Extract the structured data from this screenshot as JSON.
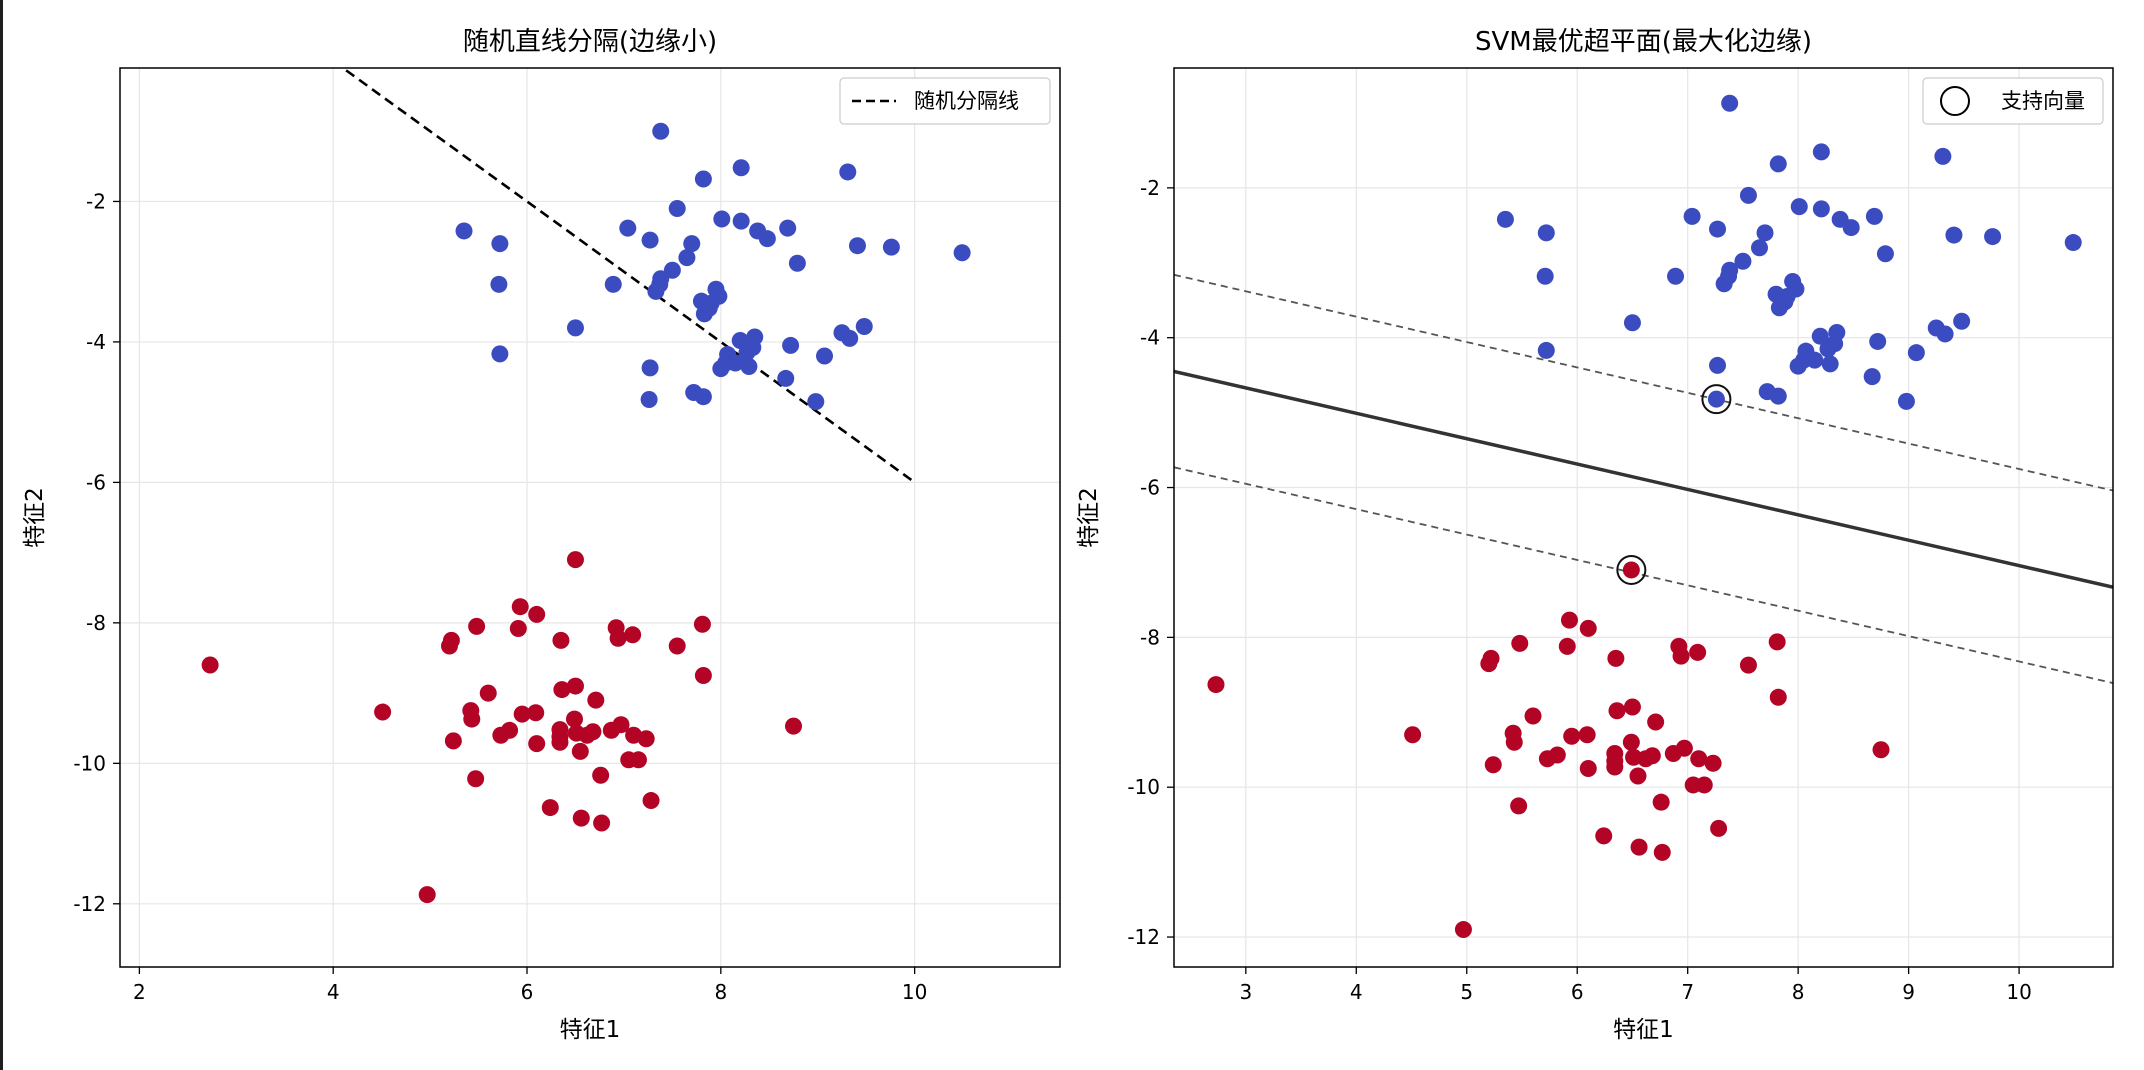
{
  "chart_data": [
    {
      "type": "scatter",
      "title": "随机直线分隔(边缘小)",
      "xlabel": "特征1",
      "ylabel": "特征2",
      "xlim": [
        1.8,
        11.5
      ],
      "ylim": [
        -12.9,
        -0.1
      ],
      "xticks": [
        2,
        4,
        6,
        8,
        10
      ],
      "yticks": [
        -2,
        -4,
        -6,
        -8,
        -10,
        -12
      ],
      "grid": true,
      "legend": {
        "position": "top-right",
        "entries": [
          {
            "label": "随机分隔线",
            "style": "dashed-line"
          }
        ]
      },
      "lines": [
        {
          "name": "随机分隔线",
          "style": "dashed",
          "color": "#000000",
          "x": [
            4.0,
            10.0
          ],
          "y": [
            0.0,
            -6.0
          ]
        }
      ],
      "series": [
        {
          "name": "class_0",
          "color": "#3B4CC0",
          "points": [
            [
              7.38,
              -1.0
            ],
            [
              8.21,
              -1.52
            ],
            [
              9.31,
              -1.58
            ],
            [
              7.82,
              -1.68
            ],
            [
              7.55,
              -2.1
            ],
            [
              8.01,
              -2.25
            ],
            [
              8.21,
              -2.28
            ],
            [
              5.35,
              -2.42
            ],
            [
              7.04,
              -2.38
            ],
            [
              8.69,
              -2.38
            ],
            [
              8.38,
              -2.42
            ],
            [
              8.48,
              -2.53
            ],
            [
              7.27,
              -2.55
            ],
            [
              7.7,
              -2.6
            ],
            [
              5.72,
              -2.6
            ],
            [
              9.41,
              -2.63
            ],
            [
              9.76,
              -2.65
            ],
            [
              10.49,
              -2.73
            ],
            [
              7.65,
              -2.8
            ],
            [
              8.79,
              -2.88
            ],
            [
              7.5,
              -2.98
            ],
            [
              7.38,
              -3.1
            ],
            [
              6.89,
              -3.18
            ],
            [
              5.71,
              -3.18
            ],
            [
              7.37,
              -3.18
            ],
            [
              7.95,
              -3.25
            ],
            [
              7.33,
              -3.28
            ],
            [
              7.98,
              -3.35
            ],
            [
              7.8,
              -3.42
            ],
            [
              7.9,
              -3.45
            ],
            [
              7.88,
              -3.52
            ],
            [
              7.83,
              -3.6
            ],
            [
              6.5,
              -3.8
            ],
            [
              9.48,
              -3.78
            ],
            [
              9.25,
              -3.87
            ],
            [
              9.33,
              -3.95
            ],
            [
              8.35,
              -3.93
            ],
            [
              8.2,
              -3.98
            ],
            [
              8.33,
              -4.08
            ],
            [
              8.72,
              -4.05
            ],
            [
              8.27,
              -4.15
            ],
            [
              8.07,
              -4.18
            ],
            [
              9.07,
              -4.2
            ],
            [
              5.72,
              -4.17
            ],
            [
              8.15,
              -4.3
            ],
            [
              8.05,
              -4.3
            ],
            [
              7.27,
              -4.37
            ],
            [
              8.0,
              -4.38
            ],
            [
              8.29,
              -4.35
            ],
            [
              8.67,
              -4.52
            ],
            [
              7.72,
              -4.72
            ],
            [
              7.82,
              -4.78
            ],
            [
              8.98,
              -4.85
            ],
            [
              7.26,
              -4.82
            ]
          ]
        },
        {
          "name": "class_1",
          "color": "#B40426",
          "points": [
            [
              6.5,
              -7.1
            ],
            [
              5.93,
              -7.77
            ],
            [
              6.1,
              -7.88
            ],
            [
              7.81,
              -8.02
            ],
            [
              5.48,
              -8.05
            ],
            [
              5.91,
              -8.08
            ],
            [
              6.92,
              -8.07
            ],
            [
              7.09,
              -8.17
            ],
            [
              6.94,
              -8.22
            ],
            [
              6.35,
              -8.25
            ],
            [
              5.22,
              -8.25
            ],
            [
              5.2,
              -8.33
            ],
            [
              7.55,
              -8.33
            ],
            [
              2.73,
              -8.6
            ],
            [
              7.82,
              -8.75
            ],
            [
              6.5,
              -8.9
            ],
            [
              6.36,
              -8.95
            ],
            [
              5.6,
              -9.0
            ],
            [
              6.71,
              -9.1
            ],
            [
              4.51,
              -9.27
            ],
            [
              5.42,
              -9.25
            ],
            [
              6.09,
              -9.28
            ],
            [
              5.95,
              -9.3
            ],
            [
              5.43,
              -9.37
            ],
            [
              6.49,
              -9.37
            ],
            [
              6.97,
              -9.45
            ],
            [
              6.87,
              -9.53
            ],
            [
              8.75,
              -9.47
            ],
            [
              6.34,
              -9.52
            ],
            [
              5.82,
              -9.53
            ],
            [
              6.68,
              -9.55
            ],
            [
              6.51,
              -9.57
            ],
            [
              5.73,
              -9.6
            ],
            [
              6.62,
              -9.6
            ],
            [
              7.1,
              -9.6
            ],
            [
              6.34,
              -9.62
            ],
            [
              7.23,
              -9.65
            ],
            [
              5.24,
              -9.68
            ],
            [
              6.34,
              -9.7
            ],
            [
              6.1,
              -9.72
            ],
            [
              6.55,
              -9.83
            ],
            [
              7.05,
              -9.95
            ],
            [
              7.15,
              -9.95
            ],
            [
              5.47,
              -10.22
            ],
            [
              6.76,
              -10.17
            ],
            [
              7.28,
              -10.53
            ],
            [
              6.24,
              -10.63
            ],
            [
              6.56,
              -10.78
            ],
            [
              6.77,
              -10.85
            ],
            [
              4.97,
              -11.87
            ]
          ]
        }
      ]
    },
    {
      "type": "scatter",
      "title": "SVM最优超平面(最大化边缘)",
      "xlabel": "特征1",
      "ylabel": "特征2",
      "xlim": [
        2.35,
        10.85
      ],
      "ylim": [
        -12.4,
        -0.4
      ],
      "xticks": [
        3,
        4,
        5,
        6,
        7,
        8,
        9,
        10
      ],
      "yticks": [
        -2,
        -4,
        -6,
        -8,
        -10,
        -12
      ],
      "grid": true,
      "legend": {
        "position": "top-right",
        "entries": [
          {
            "label": "支持向量",
            "style": "open-circle"
          }
        ]
      },
      "lines": [
        {
          "name": "decision_boundary",
          "style": "solid",
          "color": "#333333",
          "x": [
            2.35,
            10.85
          ],
          "y": [
            -4.45,
            -7.33
          ]
        },
        {
          "name": "margin_upper",
          "style": "dashed",
          "color": "#555555",
          "x": [
            2.35,
            10.85
          ],
          "y": [
            -3.16,
            -6.04
          ]
        },
        {
          "name": "margin_lower",
          "style": "dashed",
          "color": "#555555",
          "x": [
            2.35,
            10.85
          ],
          "y": [
            -5.73,
            -8.61
          ]
        }
      ],
      "support_vectors": [
        [
          7.26,
          -4.82
        ],
        [
          6.49,
          -7.1
        ]
      ],
      "series": [
        {
          "name": "class_0",
          "color": "#3B4CC0",
          "points": [
            [
              7.38,
              -0.87
            ],
            [
              8.21,
              -1.52
            ],
            [
              9.31,
              -1.58
            ],
            [
              7.82,
              -1.68
            ],
            [
              7.55,
              -2.1
            ],
            [
              8.01,
              -2.25
            ],
            [
              8.21,
              -2.28
            ],
            [
              5.35,
              -2.42
            ],
            [
              7.04,
              -2.38
            ],
            [
              8.69,
              -2.38
            ],
            [
              8.38,
              -2.42
            ],
            [
              8.48,
              -2.53
            ],
            [
              7.27,
              -2.55
            ],
            [
              7.7,
              -2.6
            ],
            [
              5.72,
              -2.6
            ],
            [
              9.41,
              -2.63
            ],
            [
              9.76,
              -2.65
            ],
            [
              10.49,
              -2.73
            ],
            [
              7.65,
              -2.8
            ],
            [
              8.79,
              -2.88
            ],
            [
              7.5,
              -2.98
            ],
            [
              7.38,
              -3.1
            ],
            [
              6.89,
              -3.18
            ],
            [
              5.71,
              -3.18
            ],
            [
              7.37,
              -3.18
            ],
            [
              7.95,
              -3.25
            ],
            [
              7.33,
              -3.28
            ],
            [
              7.98,
              -3.35
            ],
            [
              7.8,
              -3.42
            ],
            [
              7.9,
              -3.45
            ],
            [
              7.88,
              -3.52
            ],
            [
              7.83,
              -3.6
            ],
            [
              6.5,
              -3.8
            ],
            [
              9.48,
              -3.78
            ],
            [
              9.25,
              -3.87
            ],
            [
              9.33,
              -3.95
            ],
            [
              8.35,
              -3.93
            ],
            [
              8.2,
              -3.98
            ],
            [
              8.33,
              -4.08
            ],
            [
              8.72,
              -4.05
            ],
            [
              8.27,
              -4.15
            ],
            [
              8.07,
              -4.18
            ],
            [
              9.07,
              -4.2
            ],
            [
              5.72,
              -4.17
            ],
            [
              8.15,
              -4.3
            ],
            [
              8.05,
              -4.3
            ],
            [
              7.27,
              -4.37
            ],
            [
              8.0,
              -4.38
            ],
            [
              8.29,
              -4.35
            ],
            [
              8.67,
              -4.52
            ],
            [
              7.72,
              -4.72
            ],
            [
              7.82,
              -4.78
            ],
            [
              8.98,
              -4.85
            ],
            [
              7.26,
              -4.82
            ]
          ]
        },
        {
          "name": "class_1",
          "color": "#B40426",
          "points": [
            [
              6.49,
              -7.1
            ],
            [
              5.93,
              -7.77
            ],
            [
              6.1,
              -7.88
            ],
            [
              7.81,
              -8.06
            ],
            [
              5.48,
              -8.08
            ],
            [
              5.91,
              -8.12
            ],
            [
              6.92,
              -8.12
            ],
            [
              7.09,
              -8.2
            ],
            [
              6.94,
              -8.25
            ],
            [
              6.35,
              -8.28
            ],
            [
              5.22,
              -8.28
            ],
            [
              5.2,
              -8.35
            ],
            [
              7.55,
              -8.37
            ],
            [
              2.73,
              -8.63
            ],
            [
              7.82,
              -8.8
            ],
            [
              6.5,
              -8.93
            ],
            [
              6.36,
              -8.98
            ],
            [
              5.6,
              -9.05
            ],
            [
              6.71,
              -9.13
            ],
            [
              4.51,
              -9.3
            ],
            [
              5.42,
              -9.28
            ],
            [
              6.09,
              -9.3
            ],
            [
              5.95,
              -9.32
            ],
            [
              5.43,
              -9.4
            ],
            [
              6.49,
              -9.4
            ],
            [
              6.97,
              -9.48
            ],
            [
              6.87,
              -9.55
            ],
            [
              8.75,
              -9.5
            ],
            [
              6.34,
              -9.55
            ],
            [
              5.82,
              -9.57
            ],
            [
              6.68,
              -9.58
            ],
            [
              6.51,
              -9.6
            ],
            [
              5.73,
              -9.62
            ],
            [
              6.62,
              -9.62
            ],
            [
              7.1,
              -9.62
            ],
            [
              6.34,
              -9.65
            ],
            [
              7.23,
              -9.68
            ],
            [
              5.24,
              -9.7
            ],
            [
              6.34,
              -9.73
            ],
            [
              6.1,
              -9.75
            ],
            [
              6.55,
              -9.85
            ],
            [
              7.05,
              -9.97
            ],
            [
              7.15,
              -9.97
            ],
            [
              5.47,
              -10.25
            ],
            [
              6.76,
              -10.2
            ],
            [
              7.28,
              -10.55
            ],
            [
              6.24,
              -10.65
            ],
            [
              6.56,
              -10.8
            ],
            [
              6.77,
              -10.87
            ],
            [
              4.97,
              -11.9
            ]
          ]
        }
      ]
    }
  ]
}
